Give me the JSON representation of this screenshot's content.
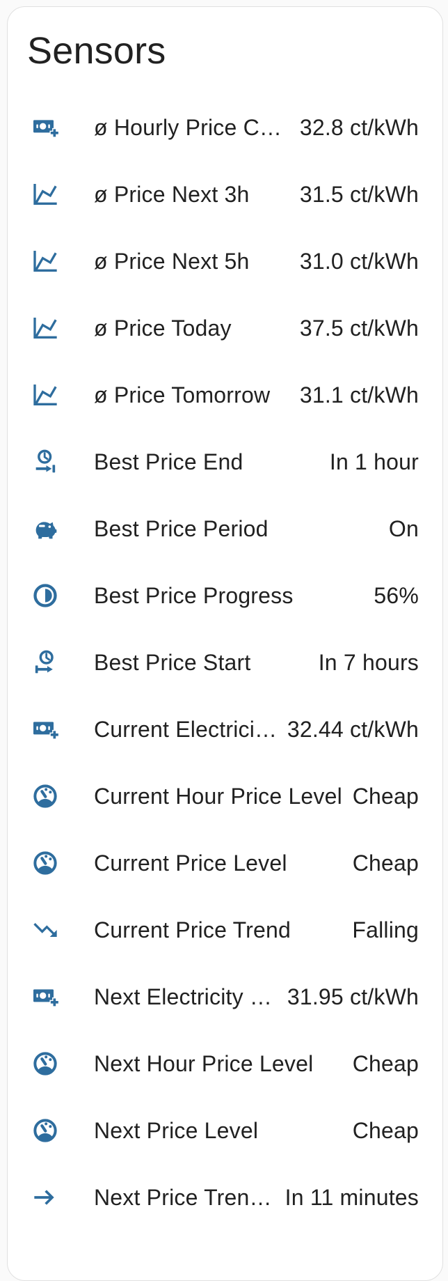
{
  "card": {
    "title": "Sensors",
    "colors": {
      "icon": "#2e6d9e",
      "text": "#212121",
      "card_bg": "#ffffff",
      "page_bg": "#fafafa",
      "border": "#e0e0e0"
    },
    "sensors": [
      {
        "icon": "cash-plus",
        "label": "ø Hourly Price Current",
        "value": "32.8 ct/kWh"
      },
      {
        "icon": "chart-line",
        "label": "ø Price Next 3h",
        "value": "31.5 ct/kWh"
      },
      {
        "icon": "chart-line",
        "label": "ø Price Next 5h",
        "value": "31.0 ct/kWh"
      },
      {
        "icon": "chart-line",
        "label": "ø Price Today",
        "value": "37.5 ct/kWh"
      },
      {
        "icon": "chart-line",
        "label": "ø Price Tomorrow",
        "value": "31.1 ct/kWh"
      },
      {
        "icon": "clock-end",
        "label": "Best Price End",
        "value": "In 1 hour"
      },
      {
        "icon": "piggy-bank",
        "label": "Best Price Period",
        "value": "On"
      },
      {
        "icon": "circle-half-full",
        "label": "Best Price Progress",
        "value": "56%"
      },
      {
        "icon": "clock-start",
        "label": "Best Price Start",
        "value": "In 7 hours"
      },
      {
        "icon": "cash-plus",
        "label": "Current Electricity Pr…",
        "value": "32.44 ct/kWh"
      },
      {
        "icon": "gauge",
        "label": "Current Hour Price Level",
        "value": "Cheap"
      },
      {
        "icon": "gauge",
        "label": "Current Price Level",
        "value": "Cheap"
      },
      {
        "icon": "trending-down",
        "label": "Current Price Trend",
        "value": "Falling"
      },
      {
        "icon": "cash-plus",
        "label": "Next Electricity Price",
        "value": "31.95 ct/kWh"
      },
      {
        "icon": "gauge",
        "label": "Next Hour Price Level",
        "value": "Cheap"
      },
      {
        "icon": "gauge",
        "label": "Next Price Level",
        "value": "Cheap"
      },
      {
        "icon": "arrow-right",
        "label": "Next Price Trend Ch…",
        "value": "In 11 minutes"
      }
    ]
  }
}
